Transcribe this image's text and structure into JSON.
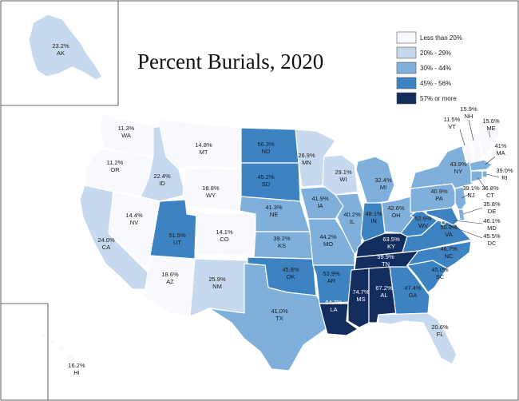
{
  "title": "Percent Burials, 2020",
  "legend": [
    {
      "label": "Less than 20%",
      "color": "#f8f9fc"
    },
    {
      "label": "20% - 29%",
      "color": "#c7d9ee"
    },
    {
      "label": "30% - 44%",
      "color": "#7fb0dc"
    },
    {
      "label": "45% - 56%",
      "color": "#3d82c1"
    },
    {
      "label": "57% or more",
      "color": "#132c5e"
    }
  ],
  "states": {
    "AK": {
      "pct": "23.2%",
      "abbr": "AK",
      "value": 23.2
    },
    "HI": {
      "pct": "16.2%",
      "abbr": "HI",
      "value": 16.2
    },
    "WA": {
      "pct": "11.3%",
      "abbr": "WA",
      "value": 11.3
    },
    "OR": {
      "pct": "11.2%",
      "abbr": "OR",
      "value": 11.2
    },
    "CA": {
      "pct": "24.0%",
      "abbr": "CA",
      "value": 24.0
    },
    "NV": {
      "pct": "14.4%",
      "abbr": "NV",
      "value": 14.4
    },
    "ID": {
      "pct": "22.4%",
      "abbr": "ID",
      "value": 22.4
    },
    "MT": {
      "pct": "14.8%",
      "abbr": "MT",
      "value": 14.8
    },
    "WY": {
      "pct": "18.8%",
      "abbr": "WY",
      "value": 18.8
    },
    "UT": {
      "pct": "51.5%",
      "abbr": "UT",
      "value": 51.5
    },
    "CO": {
      "pct": "14.1%",
      "abbr": "CO",
      "value": 14.1
    },
    "AZ": {
      "pct": "18.6%",
      "abbr": "AZ",
      "value": 18.6
    },
    "NM": {
      "pct": "25.9%",
      "abbr": "NM",
      "value": 25.9
    },
    "ND": {
      "pct": "56.3%",
      "abbr": "ND",
      "value": 56.3
    },
    "SD": {
      "pct": "45.2%",
      "abbr": "SD",
      "value": 45.2
    },
    "NE": {
      "pct": "41.3%",
      "abbr": "NE",
      "value": 41.3
    },
    "KS": {
      "pct": "39.2%",
      "abbr": "KS",
      "value": 39.2
    },
    "OK": {
      "pct": "45.8%",
      "abbr": "OK",
      "value": 45.8
    },
    "TX": {
      "pct": "41.0%",
      "abbr": "TX",
      "value": 41.0
    },
    "MN": {
      "pct": "26.9%",
      "abbr": "MN",
      "value": 26.9
    },
    "IA": {
      "pct": "41.9%",
      "abbr": "IA",
      "value": 41.9
    },
    "MO": {
      "pct": "44.2%",
      "abbr": "MO",
      "value": 44.2
    },
    "AR": {
      "pct": "53.9%",
      "abbr": "AR",
      "value": 53.9
    },
    "LA": {
      "pct": "64.7%",
      "abbr": "LA",
      "value": 64.7
    },
    "WI": {
      "pct": "29.1%",
      "abbr": "WI",
      "value": 29.1
    },
    "IL": {
      "pct": "40.2%",
      "abbr": "IL",
      "value": 40.2
    },
    "MI": {
      "pct": "32.4%",
      "abbr": "MI",
      "value": 32.4
    },
    "IN": {
      "pct": "48.1%",
      "abbr": "IN",
      "value": 48.1
    },
    "OH": {
      "pct": "42.6%",
      "abbr": "OH",
      "value": 42.6
    },
    "KY": {
      "pct": "63.5%",
      "abbr": "KY",
      "value": 63.5
    },
    "TN": {
      "pct": "59.9%",
      "abbr": "TN",
      "value": 59.9
    },
    "MS": {
      "pct": "74.7%",
      "abbr": "MS",
      "value": 74.7
    },
    "AL": {
      "pct": "67.2%",
      "abbr": "AL",
      "value": 67.2
    },
    "GA": {
      "pct": "47.4%",
      "abbr": "GA",
      "value": 47.4
    },
    "FL": {
      "pct": "20.6%",
      "abbr": "FL",
      "value": 20.6
    },
    "SC": {
      "pct": "45.0%",
      "abbr": "SC",
      "value": 45.0
    },
    "NC": {
      "pct": "46.7%",
      "abbr": "NC",
      "value": 46.7
    },
    "VA": {
      "pct": "50.9%",
      "abbr": "VA",
      "value": 50.9
    },
    "WV": {
      "pct": "52.6%",
      "abbr": "WV",
      "value": 52.6
    },
    "PA": {
      "pct": "40.9%",
      "abbr": "PA",
      "value": 40.9
    },
    "NY": {
      "pct": "43.9%",
      "abbr": "NY",
      "value": 43.9
    },
    "VT": {
      "pct": "11.5%",
      "abbr": "VT",
      "value": 11.5
    },
    "NH": {
      "pct": "15.9%",
      "abbr": "NH",
      "value": 15.9
    },
    "ME": {
      "pct": "15.6%",
      "abbr": "ME",
      "value": 15.6
    },
    "MA": {
      "pct": "41%",
      "abbr": "MA",
      "value": 41
    },
    "RI": {
      "pct": "39.0%",
      "abbr": "RI",
      "value": 39.0
    },
    "CT": {
      "pct": "36.8%",
      "abbr": "CT",
      "value": 36.8
    },
    "NJ": {
      "pct": "39.1%",
      "abbr": "NJ",
      "value": 39.1
    },
    "DE": {
      "pct": "35.8%",
      "abbr": "DE",
      "value": 35.8
    },
    "MD": {
      "pct": "46.1%",
      "abbr": "MD",
      "value": 46.1
    },
    "DC": {
      "pct": "45.5%",
      "abbr": "DC",
      "value": 45.5
    }
  }
}
